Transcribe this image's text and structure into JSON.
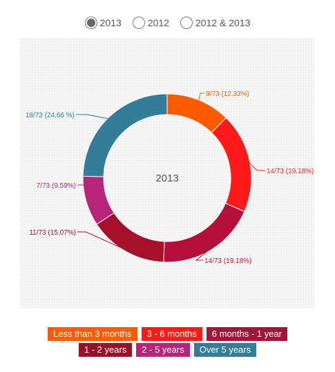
{
  "year_toggle": {
    "options": [
      {
        "label": "2013",
        "checked": true
      },
      {
        "label": "2012",
        "checked": false
      },
      {
        "label": "2012 & 2013",
        "checked": false
      }
    ]
  },
  "chart_data": {
    "type": "pie",
    "center_label": "2013",
    "total": 73,
    "slices": [
      {
        "name": "Less than 3 months",
        "value": 9,
        "label": "9/73 (12.33%)",
        "color": "#ff5a00"
      },
      {
        "name": "3 - 6 months",
        "value": 14,
        "label": "14/73 (19.18%)",
        "color": "#ff1a1a"
      },
      {
        "name": "6 months - 1 year",
        "value": 14,
        "label": "14/73 (19.18%)",
        "color": "#b5103c"
      },
      {
        "name": "1 - 2 years",
        "value": 11,
        "label": "11/73 (15.07%)",
        "color": "#a5102a"
      },
      {
        "name": "2 - 5 years",
        "value": 7,
        "label": "7/73 (9.59%)",
        "color": "#b8247a"
      },
      {
        "name": "Over 5 years",
        "value": 18,
        "label": "18/73 (24.66 %)",
        "color": "#347d98"
      }
    ],
    "legend": {
      "placement": "bottom",
      "items": [
        {
          "label": "Less than 3 months",
          "color": "#ff5a00"
        },
        {
          "label": "3 - 6 months",
          "color": "#ff1a1a"
        },
        {
          "label": "6 months - 1 year",
          "color": "#a3163b"
        },
        {
          "label": "1 - 2 years",
          "color": "#9c0f28"
        },
        {
          "label": "2 - 5 years",
          "color": "#b8247a"
        },
        {
          "label": "Over 5 years",
          "color": "#347d98"
        }
      ]
    }
  }
}
